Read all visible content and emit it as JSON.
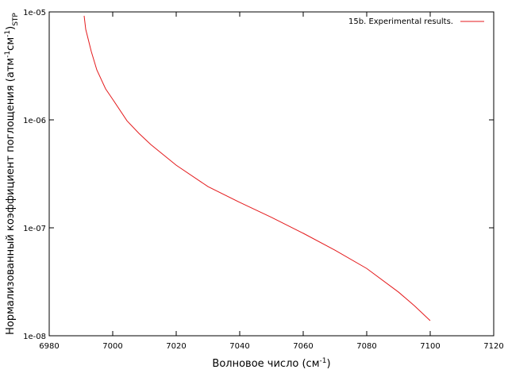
{
  "chart_data": {
    "type": "line",
    "xlabel": [
      "Волновое число (см",
      "-1",
      ")"
    ],
    "ylabel": [
      "Нормализованный коэффициент поглощения (атм",
      "-1",
      "см",
      "-1",
      ")",
      "STP"
    ],
    "x": [
      6991,
      6991.5,
      6993.25,
      6995,
      6997.75,
      7000,
      7004.5,
      7008.25,
      7012,
      7020,
      7030,
      7040,
      7050,
      7060,
      7070,
      7080,
      7090,
      7095,
      7100
    ],
    "series": [
      {
        "name": "15b. Experimental results.",
        "color": "#e41a1c",
        "values": [
          9.2e-06,
          6.9e-06,
          4.3e-06,
          2.9e-06,
          1.94e-06,
          1.55e-06,
          9.8e-07,
          7.5e-07,
          5.9e-07,
          3.8e-07,
          2.41e-07,
          1.72e-07,
          1.25e-07,
          8.9e-08,
          6.2e-08,
          4.2e-08,
          2.54e-08,
          1.9e-08,
          1.38e-08
        ]
      }
    ],
    "xlim": [
      6980,
      7120
    ],
    "xticks": [
      6980,
      7000,
      7020,
      7040,
      7060,
      7080,
      7100,
      7120
    ],
    "ylim": [
      1e-08,
      1e-05
    ],
    "yscale": "log",
    "yticks": [
      {
        "value": 1e-08,
        "label": "1e-08"
      },
      {
        "value": 1e-07,
        "label": "1e-07"
      },
      {
        "value": 1e-06,
        "label": "1e-06"
      },
      {
        "value": 1e-05,
        "label": "1e-05"
      }
    ],
    "legend": "upper right"
  }
}
